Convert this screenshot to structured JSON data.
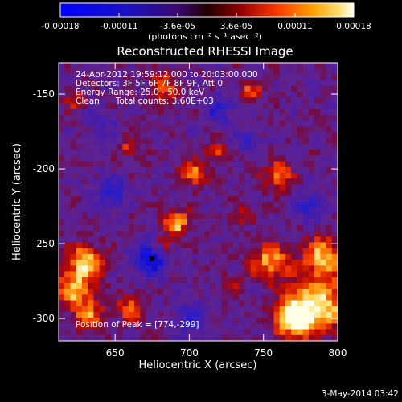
{
  "chart_data": {
    "type": "heatmap",
    "title": "Reconstructed RHESSI Image",
    "xlabel": "Heliocentric X (arcsec)",
    "ylabel": "Heliocentric Y (arcsec)",
    "xlim": [
      612,
      800
    ],
    "ylim": [
      -315,
      -129
    ],
    "x_ticks": [
      650,
      700,
      750,
      800
    ],
    "y_ticks": [
      -150,
      -200,
      -250,
      -300
    ],
    "colorbar": {
      "range": [
        -0.00018,
        0.00018
      ],
      "ticks": [
        "-0.00018",
        "-0.00011",
        "-3.6e-05",
        "3.6e-05",
        "0.00011",
        "0.00018"
      ],
      "unit_label": "(photons cm⁻² s⁻¹ asec⁻²)",
      "colors": [
        "#0000e8",
        "#3a0ab0",
        "#8a0a0a",
        "#d01000",
        "#ff5a00",
        "#ffa020",
        "#ffe080",
        "#ffffff"
      ]
    },
    "annotations": [
      "24-Apr-2012 19:59:12.000 to 20:03:00.000",
      "Detectors: 3F 5F 6F 7F 8F 9F, Att 0",
      "Energy Range: 25.0 - 50.0 keV",
      "Clean      Total counts: 3.60E+03"
    ],
    "peak_label": "Position of Peak = [774,-299]",
    "peak": [
      774,
      -299
    ],
    "timestamp": "3-May-2014 03:42",
    "features": [
      {
        "x": 788,
        "y": -290,
        "amp": 1.0,
        "s": 13
      },
      {
        "x": 770,
        "y": -300,
        "amp": 1.1,
        "s": 9
      },
      {
        "x": 755,
        "y": -262,
        "amp": 0.8,
        "s": 9
      },
      {
        "x": 790,
        "y": -258,
        "amp": 0.85,
        "s": 9
      },
      {
        "x": 630,
        "y": -262,
        "amp": 0.9,
        "s": 8
      },
      {
        "x": 622,
        "y": -280,
        "amp": 0.8,
        "s": 9
      },
      {
        "x": 632,
        "y": -298,
        "amp": 0.7,
        "s": 7
      },
      {
        "x": 660,
        "y": -293,
        "amp": 0.6,
        "s": 6
      },
      {
        "x": 692,
        "y": -236,
        "amp": 0.85,
        "s": 6
      },
      {
        "x": 683,
        "y": -252,
        "amp": 0.55,
        "s": 5
      },
      {
        "x": 703,
        "y": -203,
        "amp": 0.7,
        "s": 6
      },
      {
        "x": 718,
        "y": -188,
        "amp": 0.55,
        "s": 5
      },
      {
        "x": 760,
        "y": -205,
        "amp": 0.7,
        "s": 7
      },
      {
        "x": 735,
        "y": -230,
        "amp": 0.45,
        "s": 5
      },
      {
        "x": 682,
        "y": -145,
        "amp": 0.7,
        "s": 6
      },
      {
        "x": 742,
        "y": -148,
        "amp": 0.55,
        "s": 5
      },
      {
        "x": 623,
        "y": -153,
        "amp": 0.5,
        "s": 5
      },
      {
        "x": 660,
        "y": -185,
        "amp": 0.5,
        "s": 5
      },
      {
        "x": 730,
        "y": -275,
        "amp": 0.35,
        "s": 5
      },
      {
        "x": 675,
        "y": -260,
        "amp": -0.9,
        "s": 8
      },
      {
        "x": 648,
        "y": -215,
        "amp": -0.55,
        "s": 7
      },
      {
        "x": 720,
        "y": -160,
        "amp": -0.5,
        "s": 7
      },
      {
        "x": 780,
        "y": -225,
        "amp": -0.45,
        "s": 8
      },
      {
        "x": 700,
        "y": -300,
        "amp": -0.5,
        "s": 8
      },
      {
        "x": 740,
        "y": -180,
        "amp": -0.4,
        "s": 6
      },
      {
        "x": 640,
        "y": -170,
        "amp": -0.35,
        "s": 6
      }
    ]
  }
}
